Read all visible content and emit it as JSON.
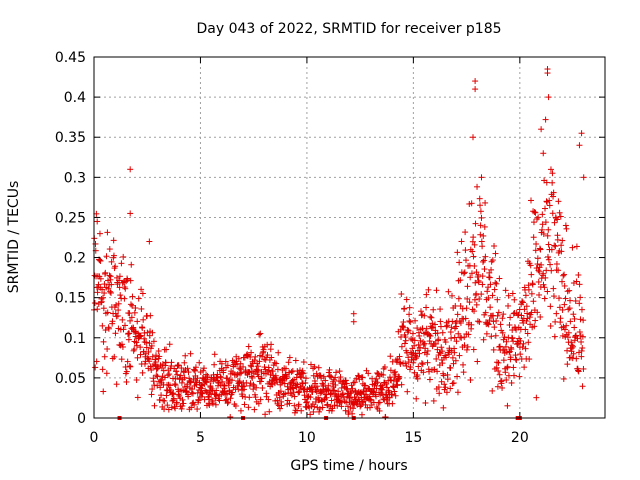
{
  "chart_data": {
    "type": "scatter",
    "title": "Day 043 of 2022, SRMTID for receiver p185",
    "xlabel": "GPS time / hours",
    "ylabel": "SRMTID / TECUs",
    "xlim": [
      0,
      24
    ],
    "ylim": [
      0,
      0.45
    ],
    "x_ticks": [
      0,
      5,
      10,
      15,
      20
    ],
    "x_tick_labels": [
      "0",
      "5",
      "10",
      "15",
      "20"
    ],
    "y_ticks": [
      0,
      0.05,
      0.1,
      0.15,
      0.2,
      0.25,
      0.3,
      0.35,
      0.4,
      0.45
    ],
    "y_tick_labels": [
      "0",
      "0.05",
      "0.1",
      "0.15",
      "0.2",
      "0.25",
      "0.3",
      "0.35",
      "0.4",
      "0.45"
    ],
    "grid": true,
    "marker": "plus",
    "color": "#e00000",
    "series": [
      {
        "name": "SRMTID",
        "profile_x": [
          0,
          0.3,
          1,
          2,
          2.5,
          3,
          4,
          5,
          6,
          7,
          7.5,
          8,
          9,
          10,
          11,
          12,
          13,
          14,
          14.5,
          15,
          16,
          17,
          17.5,
          18,
          18.5,
          19,
          19.5,
          20,
          20.5,
          21,
          21.5,
          22,
          22.5,
          23
        ],
        "profile_y": [
          0.18,
          0.15,
          0.14,
          0.1,
          0.09,
          0.05,
          0.04,
          0.04,
          0.04,
          0.05,
          0.06,
          0.06,
          0.04,
          0.035,
          0.035,
          0.03,
          0.03,
          0.04,
          0.09,
          0.09,
          0.09,
          0.1,
          0.17,
          0.2,
          0.16,
          0.1,
          0.09,
          0.1,
          0.14,
          0.2,
          0.22,
          0.15,
          0.12,
          0.1
        ],
        "spikes": [
          {
            "x": 1.7,
            "y": 0.31
          },
          {
            "x": 1.7,
            "y": 0.255
          },
          {
            "x": 2.6,
            "y": 0.22
          },
          {
            "x": 12.2,
            "y": 0.13
          },
          {
            "x": 12.2,
            "y": 0.12
          },
          {
            "x": 17.9,
            "y": 0.42
          },
          {
            "x": 17.9,
            "y": 0.41
          },
          {
            "x": 17.8,
            "y": 0.35
          },
          {
            "x": 18.2,
            "y": 0.3
          },
          {
            "x": 21.3,
            "y": 0.435
          },
          {
            "x": 21.3,
            "y": 0.43
          },
          {
            "x": 21.35,
            "y": 0.4
          },
          {
            "x": 21.0,
            "y": 0.36
          },
          {
            "x": 21.1,
            "y": 0.33
          },
          {
            "x": 22.9,
            "y": 0.355
          },
          {
            "x": 22.8,
            "y": 0.34
          },
          {
            "x": 23.0,
            "y": 0.3
          },
          {
            "x": 0.15,
            "y": 0.245
          }
        ]
      }
    ],
    "baseline_markers_x": [
      1.2,
      7.0,
      10.9,
      12.2,
      19.9,
      20.0
    ]
  }
}
